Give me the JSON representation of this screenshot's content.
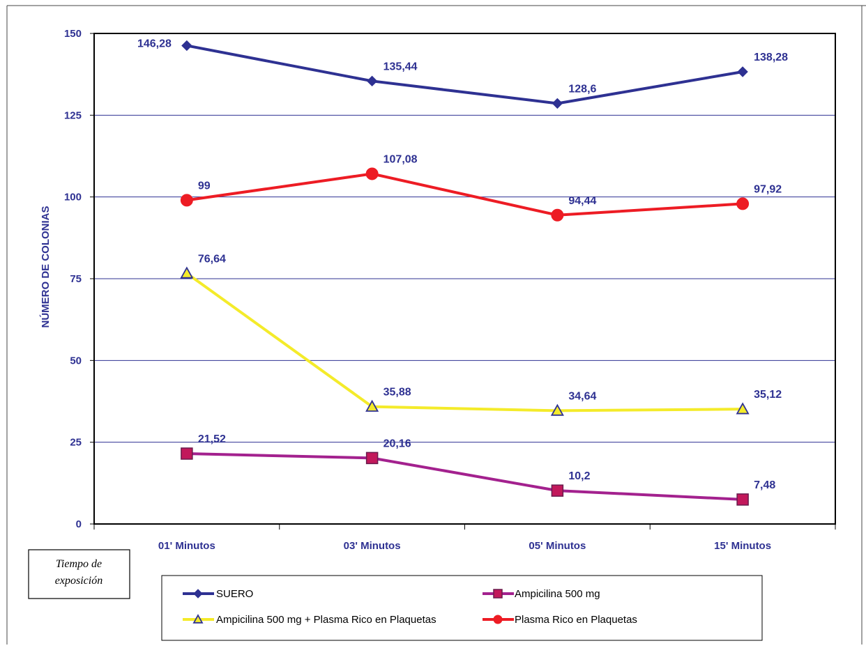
{
  "chart_data": {
    "type": "line",
    "categories": [
      "01' Minutos",
      "03' Minutos",
      "05' Minutos",
      "15' Minutos"
    ],
    "ylabel": "NÚMERO DE COLONIAS",
    "xlabel": "",
    "ylim": [
      0,
      150
    ],
    "yticks": [
      0,
      25,
      50,
      75,
      100,
      125,
      150
    ],
    "grid": true,
    "legend_position": "bottom",
    "note": [
      "Tiempo de",
      "exposición"
    ],
    "series": [
      {
        "name": "SUERO",
        "values": [
          146.28,
          135.44,
          128.6,
          138.28
        ],
        "labels": [
          "146,28",
          "135,44",
          "128,6",
          "138,28"
        ],
        "color": "#2e3192",
        "marker": "diamond"
      },
      {
        "name": "Ampicilina 500 mg",
        "values": [
          21.52,
          20.16,
          10.2,
          7.48
        ],
        "labels": [
          "21,52",
          "20,16",
          "10,2",
          "7,48"
        ],
        "color": "#a3218e",
        "marker": "square"
      },
      {
        "name": "Ampicilina 500 mg + Plasma Rico en Plaquetas",
        "values": [
          76.64,
          35.88,
          34.64,
          35.12
        ],
        "labels": [
          "76,64",
          "35,88",
          "34,64",
          "35,12"
        ],
        "color": "#f4eb2a",
        "marker": "triangle"
      },
      {
        "name": "Plasma Rico en Plaquetas",
        "values": [
          99,
          107.08,
          94.44,
          97.92
        ],
        "labels": [
          "99",
          "107,08",
          "94,44",
          "97,92"
        ],
        "color": "#ed1c24",
        "marker": "circle"
      }
    ]
  }
}
